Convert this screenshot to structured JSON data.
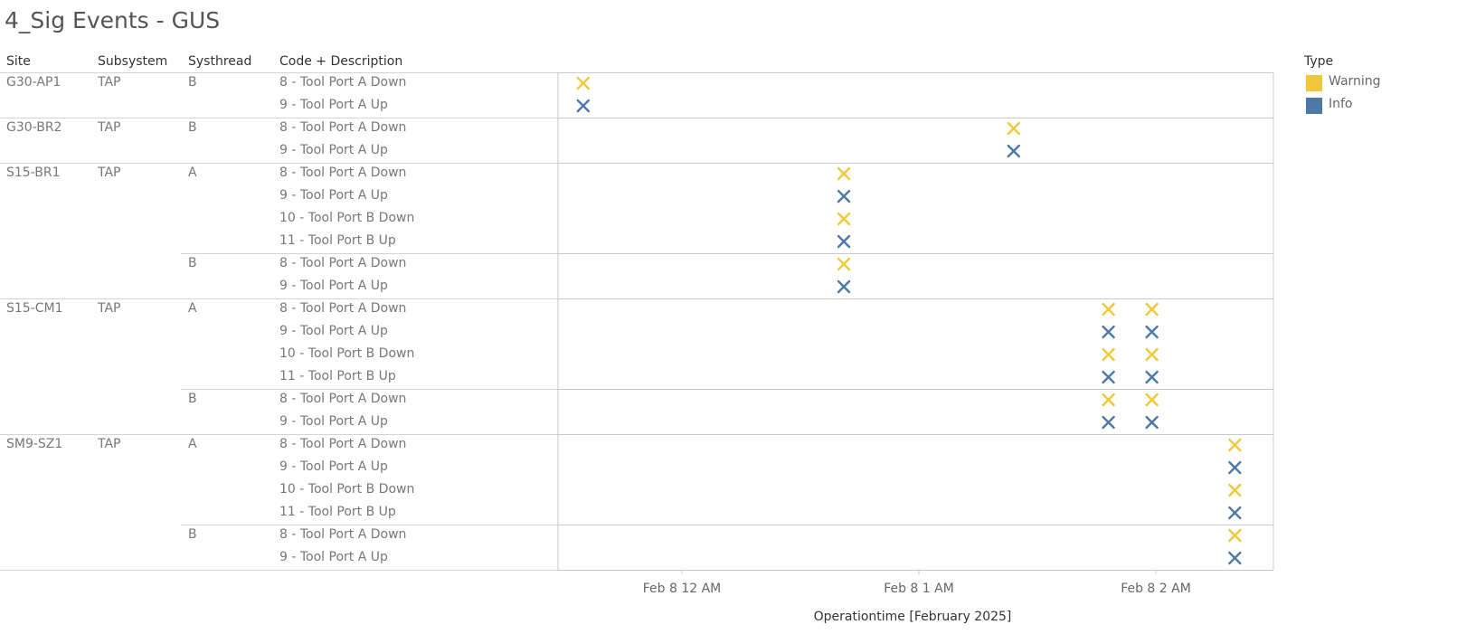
{
  "title": "4_Sig Events - GUS",
  "headers": {
    "site": "Site",
    "subsystem": "Subsystem",
    "systhread": "Systhread",
    "code": "Code + Description"
  },
  "legend": {
    "title": "Type",
    "items": [
      {
        "label": "Warning",
        "color": "#f0c93b"
      },
      {
        "label": "Info",
        "color": "#4e79a7"
      }
    ]
  },
  "chart_data": {
    "type": "scatter",
    "marker": "x",
    "x_axis": {
      "title": "Operationtime [February 2025]",
      "ticks": [
        "Feb 8 12 AM",
        "Feb 8 1 AM",
        "Feb 8 2 AM"
      ]
    },
    "rows": [
      {
        "site": "G30-AP1",
        "subsystem": "TAP",
        "systhread": "B",
        "code": "8 - Tool Port A Down",
        "type": "Warning",
        "times": [
          "Feb 8 11:35 PM"
        ]
      },
      {
        "site": "",
        "subsystem": "",
        "systhread": "",
        "code": "9 - Tool Port A Up",
        "type": "Info",
        "times": [
          "Feb 8 11:35 PM"
        ]
      },
      {
        "site": "G30-BR2",
        "subsystem": "TAP",
        "systhread": "B",
        "code": "8 - Tool Port A Down",
        "type": "Warning",
        "times": [
          "Feb 8 1:24 AM"
        ]
      },
      {
        "site": "",
        "subsystem": "",
        "systhread": "",
        "code": "9 - Tool Port A Up",
        "type": "Info",
        "times": [
          "Feb 8 1:24 AM"
        ]
      },
      {
        "site": "S15-BR1",
        "subsystem": "TAP",
        "systhread": "A",
        "code": "8 - Tool Port A Down",
        "type": "Warning",
        "times": [
          "Feb 8 12:41 AM"
        ]
      },
      {
        "site": "",
        "subsystem": "",
        "systhread": "",
        "code": "9 - Tool Port A Up",
        "type": "Info",
        "times": [
          "Feb 8 12:41 AM"
        ]
      },
      {
        "site": "",
        "subsystem": "",
        "systhread": "",
        "code": "10 - Tool Port B Down",
        "type": "Warning",
        "times": [
          "Feb 8 12:41 AM"
        ]
      },
      {
        "site": "",
        "subsystem": "",
        "systhread": "",
        "code": "11 - Tool Port B Up",
        "type": "Info",
        "times": [
          "Feb 8 12:41 AM"
        ]
      },
      {
        "site": "",
        "subsystem": "",
        "systhread": "B",
        "code": "8 - Tool Port A Down",
        "type": "Warning",
        "times": [
          "Feb 8 12:41 AM"
        ]
      },
      {
        "site": "",
        "subsystem": "",
        "systhread": "",
        "code": "9 - Tool Port A Up",
        "type": "Info",
        "times": [
          "Feb 8 12:41 AM"
        ]
      },
      {
        "site": "S15-CM1",
        "subsystem": "TAP",
        "systhread": "A",
        "code": "8 - Tool Port A Down",
        "type": "Warning",
        "times": [
          "Feb 8 1:48 AM",
          "Feb 8 1:59 AM"
        ]
      },
      {
        "site": "",
        "subsystem": "",
        "systhread": "",
        "code": "9 - Tool Port A Up",
        "type": "Info",
        "times": [
          "Feb 8 1:48 AM",
          "Feb 8 1:59 AM"
        ]
      },
      {
        "site": "",
        "subsystem": "",
        "systhread": "",
        "code": "10 - Tool Port B Down",
        "type": "Warning",
        "times": [
          "Feb 8 1:48 AM",
          "Feb 8 1:59 AM"
        ]
      },
      {
        "site": "",
        "subsystem": "",
        "systhread": "",
        "code": "11 - Tool Port B Up",
        "type": "Info",
        "times": [
          "Feb 8 1:48 AM",
          "Feb 8 1:59 AM"
        ]
      },
      {
        "site": "",
        "subsystem": "",
        "systhread": "B",
        "code": "8 - Tool Port A Down",
        "type": "Warning",
        "times": [
          "Feb 8 1:48 AM",
          "Feb 8 1:59 AM"
        ]
      },
      {
        "site": "",
        "subsystem": "",
        "systhread": "",
        "code": "9 - Tool Port A Up",
        "type": "Info",
        "times": [
          "Feb 8 1:48 AM",
          "Feb 8 1:59 AM"
        ]
      },
      {
        "site": "SM9-SZ1",
        "subsystem": "TAP",
        "systhread": "A",
        "code": "8 - Tool Port A Down",
        "type": "Warning",
        "times": [
          "Feb 8 2:20 AM"
        ]
      },
      {
        "site": "",
        "subsystem": "",
        "systhread": "",
        "code": "9 - Tool Port A Up",
        "type": "Info",
        "times": [
          "Feb 8 2:20 AM"
        ]
      },
      {
        "site": "",
        "subsystem": "",
        "systhread": "",
        "code": "10 - Tool Port B Down",
        "type": "Warning",
        "times": [
          "Feb 8 2:20 AM"
        ]
      },
      {
        "site": "",
        "subsystem": "",
        "systhread": "",
        "code": "11 - Tool Port B Up",
        "type": "Info",
        "times": [
          "Feb 8 2:20 AM"
        ]
      },
      {
        "site": "",
        "subsystem": "",
        "systhread": "B",
        "code": "8 - Tool Port A Down",
        "type": "Warning",
        "times": [
          "Feb 8 2:20 AM"
        ]
      },
      {
        "site": "",
        "subsystem": "",
        "systhread": "",
        "code": "9 - Tool Port A Up",
        "type": "Info",
        "times": [
          "Feb 8 2:20 AM"
        ]
      }
    ]
  }
}
